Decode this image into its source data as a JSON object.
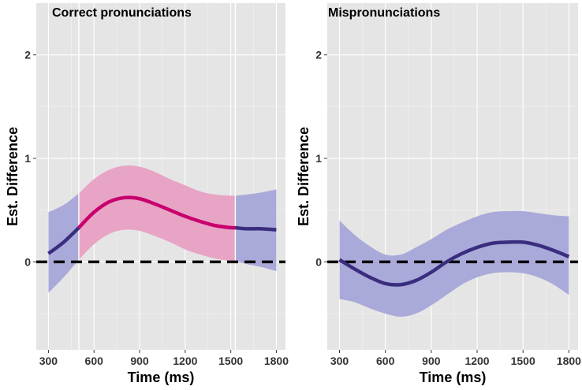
{
  "colors": {
    "panel_background": "#e5e5e5",
    "significant_line": "#c8006e",
    "significant_band": "#e8a0c3",
    "nonsignificant_line": "#3a2d7f",
    "nonsignificant_band": "#a5a6d8",
    "reference_line": "#000000"
  },
  "chart_data": [
    {
      "type": "line",
      "title": "Correct pronunciations",
      "xlabel": "Time (ms)",
      "ylabel": "Est. Difference",
      "xlim": [
        220,
        1860
      ],
      "ylim": [
        -0.85,
        2.5
      ],
      "x_ticks": [
        300,
        600,
        900,
        1200,
        1500,
        1800
      ],
      "x_tick_labels": [
        "300",
        "600",
        "900",
        "1200",
        "1500",
        "1800"
      ],
      "y_ticks": [
        0,
        1,
        2
      ],
      "y_tick_labels": [
        "0",
        "1",
        "2"
      ],
      "grid": true,
      "reference_line": {
        "y": 0,
        "style": "dashed"
      },
      "significant_windows": [
        [
          500,
          1530
        ]
      ],
      "x": [
        300,
        400,
        500,
        600,
        700,
        800,
        900,
        1000,
        1100,
        1200,
        1300,
        1400,
        1500,
        1530,
        1600,
        1700,
        1800
      ],
      "estimate": [
        0.08,
        0.19,
        0.33,
        0.48,
        0.58,
        0.62,
        0.61,
        0.56,
        0.5,
        0.44,
        0.39,
        0.35,
        0.33,
        0.33,
        0.32,
        0.32,
        0.31
      ],
      "lower": [
        -0.3,
        -0.15,
        0.02,
        0.17,
        0.27,
        0.31,
        0.3,
        0.25,
        0.19,
        0.12,
        0.07,
        0.03,
        0.01,
        0.01,
        -0.02,
        -0.05,
        -0.09
      ],
      "upper": [
        0.48,
        0.55,
        0.66,
        0.8,
        0.89,
        0.93,
        0.92,
        0.87,
        0.8,
        0.74,
        0.68,
        0.65,
        0.64,
        0.64,
        0.65,
        0.67,
        0.7
      ]
    },
    {
      "type": "line",
      "title": "Mispronunciations",
      "xlabel": "Time (ms)",
      "ylabel": "Est. Difference",
      "xlim": [
        220,
        1860
      ],
      "ylim": [
        -0.85,
        2.5
      ],
      "x_ticks": [
        300,
        600,
        900,
        1200,
        1500,
        1800
      ],
      "x_tick_labels": [
        "300",
        "600",
        "900",
        "1200",
        "1500",
        "1800"
      ],
      "y_ticks": [
        0,
        1,
        2
      ],
      "y_tick_labels": [
        "0",
        "1",
        "2"
      ],
      "grid": true,
      "reference_line": {
        "y": 0,
        "style": "dashed"
      },
      "significant_windows": [],
      "x": [
        300,
        400,
        500,
        600,
        700,
        800,
        900,
        1000,
        1100,
        1200,
        1300,
        1400,
        1500,
        1600,
        1700,
        1800
      ],
      "estimate": [
        0.02,
        -0.07,
        -0.15,
        -0.21,
        -0.22,
        -0.18,
        -0.1,
        0.0,
        0.08,
        0.14,
        0.18,
        0.19,
        0.19,
        0.16,
        0.11,
        0.05
      ],
      "lower": [
        -0.36,
        -0.39,
        -0.45,
        -0.5,
        -0.53,
        -0.5,
        -0.42,
        -0.32,
        -0.22,
        -0.15,
        -0.11,
        -0.1,
        -0.11,
        -0.15,
        -0.22,
        -0.32
      ],
      "upper": [
        0.4,
        0.26,
        0.15,
        0.07,
        0.07,
        0.14,
        0.22,
        0.31,
        0.38,
        0.44,
        0.48,
        0.49,
        0.49,
        0.47,
        0.45,
        0.44
      ]
    }
  ]
}
